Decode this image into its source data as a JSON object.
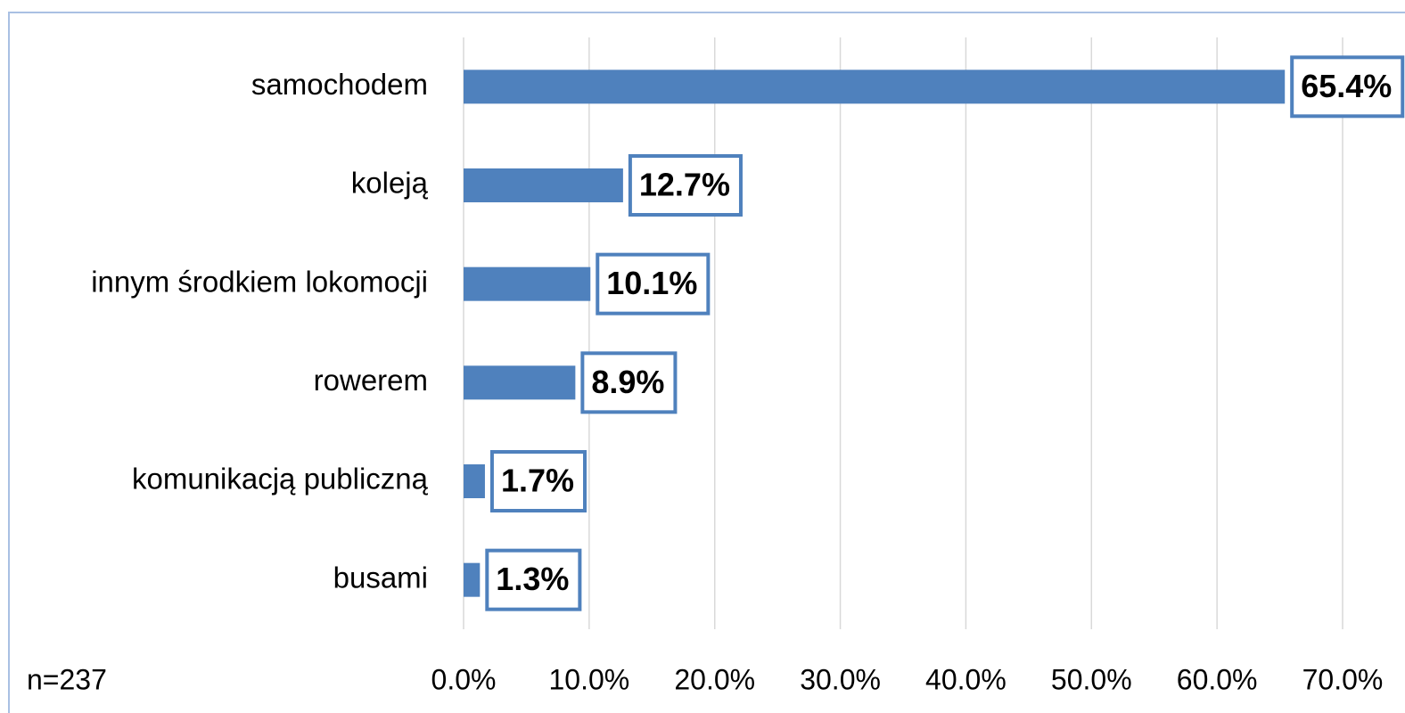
{
  "chart_data": {
    "type": "bar",
    "orientation": "horizontal",
    "categories": [
      "samochodem",
      "koleją",
      "innym środkiem lokomocji",
      "rowerem",
      "komunikacją publiczną",
      "busami"
    ],
    "values": [
      65.4,
      12.7,
      10.1,
      8.9,
      1.7,
      1.3
    ],
    "value_labels": [
      "65.4%",
      "12.7%",
      "10.1%",
      "8.9%",
      "1.7%",
      "1.3%"
    ],
    "color": "#4f81bd",
    "xlim": [
      0,
      70
    ],
    "xticks": [
      {
        "value": 0,
        "label": "0.0%"
      },
      {
        "value": 10,
        "label": "10.0%"
      },
      {
        "value": 20,
        "label": "20.0%"
      },
      {
        "value": 30,
        "label": "30.0%"
      },
      {
        "value": 40,
        "label": "40.0%"
      },
      {
        "value": 50,
        "label": "50.0%"
      },
      {
        "value": 60,
        "label": "60.0%"
      },
      {
        "value": 70,
        "label": "70.0%"
      }
    ],
    "grid": true,
    "annotation": "n=237"
  }
}
